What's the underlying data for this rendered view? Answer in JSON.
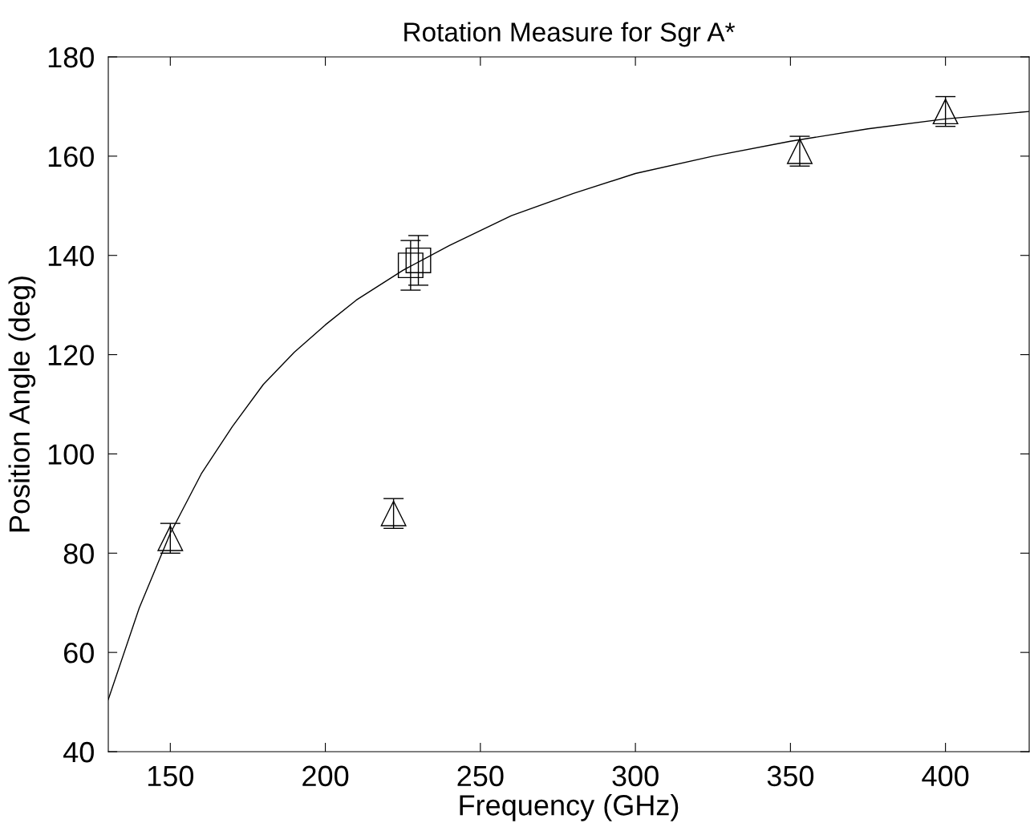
{
  "chart_data": {
    "type": "scatter",
    "title": "Rotation Measure for Sgr A*",
    "xlabel": "Frequency (GHz)",
    "ylabel": "Position Angle (deg)",
    "xlim": [
      130,
      427
    ],
    "xticks": [
      150,
      200,
      250,
      300,
      350,
      400
    ],
    "ylim": [
      40,
      180
    ],
    "yticks": [
      40,
      60,
      80,
      100,
      120,
      140,
      160,
      180
    ],
    "grid": false,
    "series": [
      {
        "marker": "triangle",
        "color": "#000000",
        "x": [
          150,
          222,
          353,
          400
        ],
        "values": [
          83,
          88,
          161,
          169
        ],
        "errors": [
          3,
          3,
          3,
          3
        ]
      },
      {
        "marker": "square",
        "color": "#000000",
        "x": [
          227.5,
          230
        ],
        "values": [
          138,
          139
        ],
        "errors": [
          5,
          5
        ]
      },
      {
        "type": "line",
        "marker": "none",
        "line_style": "solid",
        "color": "#000000",
        "x": [
          130,
          140,
          150,
          160,
          170,
          180,
          190,
          200,
          210,
          225,
          240,
          260,
          280,
          300,
          325,
          350,
          375,
          400,
          427
        ],
        "values": [
          50.5,
          69,
          84,
          96,
          105.5,
          114,
          120.5,
          126,
          131,
          137,
          142,
          148,
          152.5,
          156.5,
          160,
          163,
          165.5,
          167.5,
          169
        ]
      }
    ]
  }
}
